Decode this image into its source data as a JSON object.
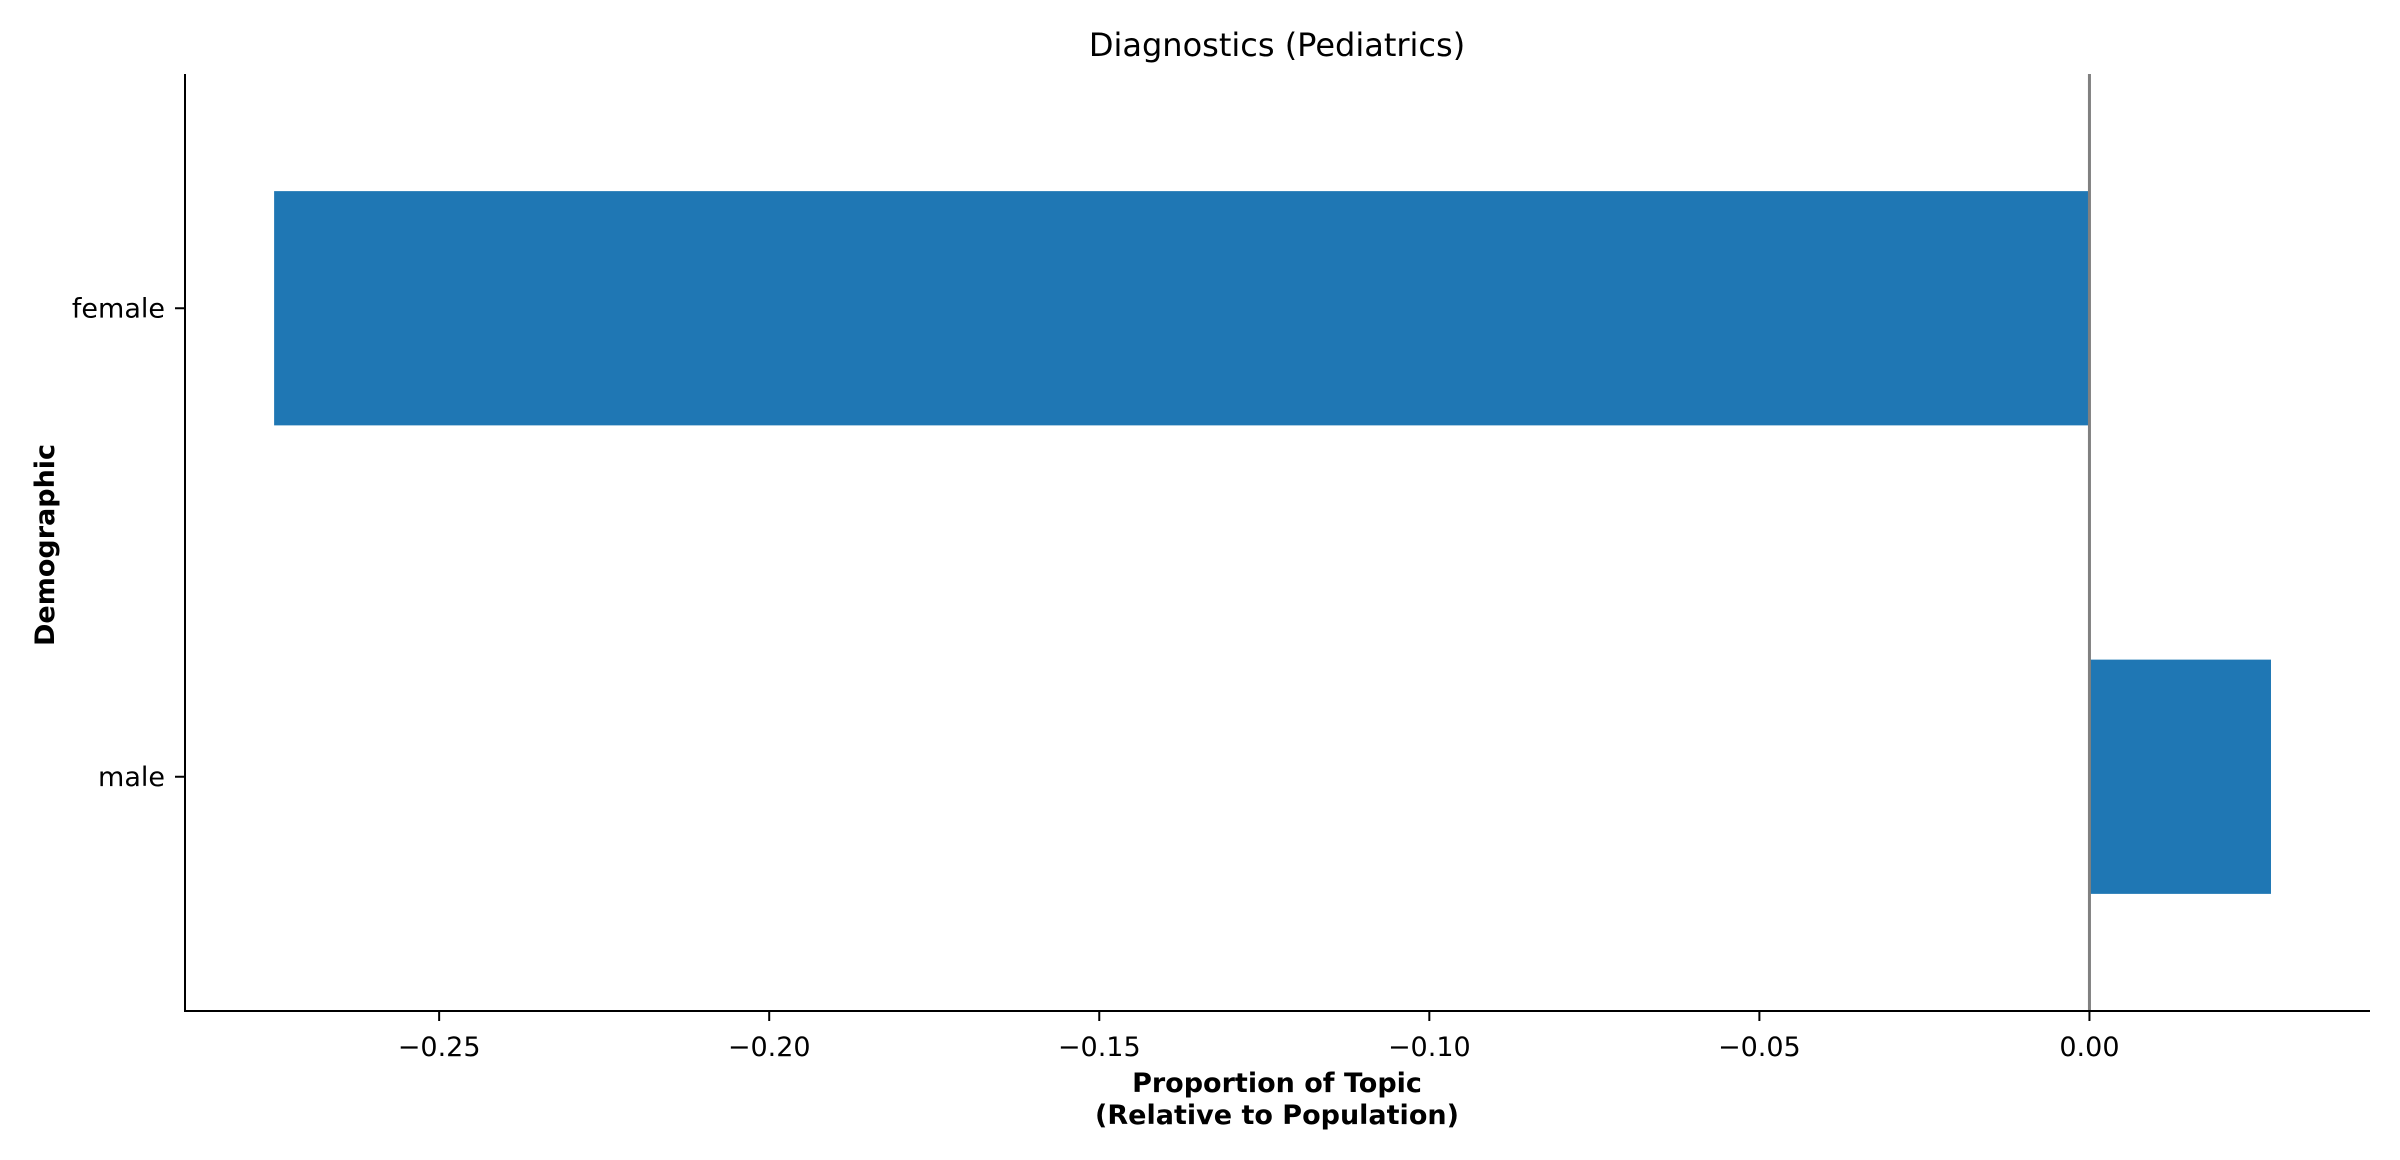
{
  "chart_data": {
    "type": "bar",
    "orientation": "horizontal",
    "title": "Diagnostics (Pediatrics)",
    "xlabel_lines": [
      "Proportion of Topic",
      "(Relative to Population)"
    ],
    "ylabel": "Demographic",
    "categories": [
      "female",
      "male"
    ],
    "values": [
      -0.275,
      0.0275
    ],
    "xlim": [
      -0.2885,
      0.0425
    ],
    "xticks": [
      -0.25,
      -0.2,
      -0.15,
      -0.1,
      -0.05,
      0.0
    ],
    "xtick_labels": [
      "−0.25",
      "−0.20",
      "−0.15",
      "−0.10",
      "−0.05",
      "0.00"
    ],
    "bar_color": "#1f77b4",
    "zero_line_color": "#808080",
    "grid": false
  }
}
